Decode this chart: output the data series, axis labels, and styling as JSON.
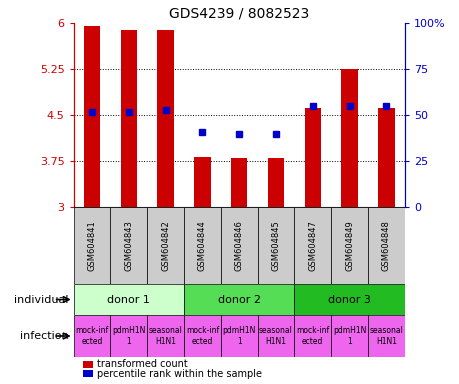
{
  "title": "GDS4239 / 8082523",
  "samples": [
    "GSM604841",
    "GSM604843",
    "GSM604842",
    "GSM604844",
    "GSM604846",
    "GSM604845",
    "GSM604847",
    "GSM604849",
    "GSM604848"
  ],
  "bar_values": [
    5.95,
    5.88,
    5.88,
    3.82,
    3.8,
    3.8,
    4.62,
    5.25,
    4.62
  ],
  "percentile_values": [
    52,
    52,
    53,
    41,
    40,
    40,
    55,
    55,
    55
  ],
  "ylim": [
    3,
    6
  ],
  "yticks": [
    3,
    3.75,
    4.5,
    5.25,
    6
  ],
  "right_yticks": [
    0,
    25,
    50,
    75,
    100
  ],
  "right_ylabels": [
    "0",
    "25",
    "50",
    "75",
    "100%"
  ],
  "bar_color": "#cc0000",
  "percentile_color": "#0000cc",
  "donors": [
    {
      "label": "donor 1",
      "start": 0,
      "end": 3,
      "color": "#ccffcc"
    },
    {
      "label": "donor 2",
      "start": 3,
      "end": 6,
      "color": "#55dd55"
    },
    {
      "label": "donor 3",
      "start": 6,
      "end": 9,
      "color": "#22bb22"
    }
  ],
  "inf_labels": [
    "mock-inf\nected",
    "pdmH1N\n1",
    "seasonal\nH1N1",
    "mock-inf\nected",
    "pdmH1N\n1",
    "seasonal\nH1N1",
    "mock-inf\nected",
    "pdmH1N\n1",
    "seasonal\nH1N1"
  ],
  "inf_color": "#ee66ee",
  "individual_label": "individual",
  "infection_label": "infection",
  "legend_bar_label": "transformed count",
  "legend_pct_label": "percentile rank within the sample",
  "background_color": "#ffffff",
  "ylabel_color": "#cc0000",
  "right_ylabel_color": "#0000cc",
  "sample_bg_color": "#cccccc"
}
